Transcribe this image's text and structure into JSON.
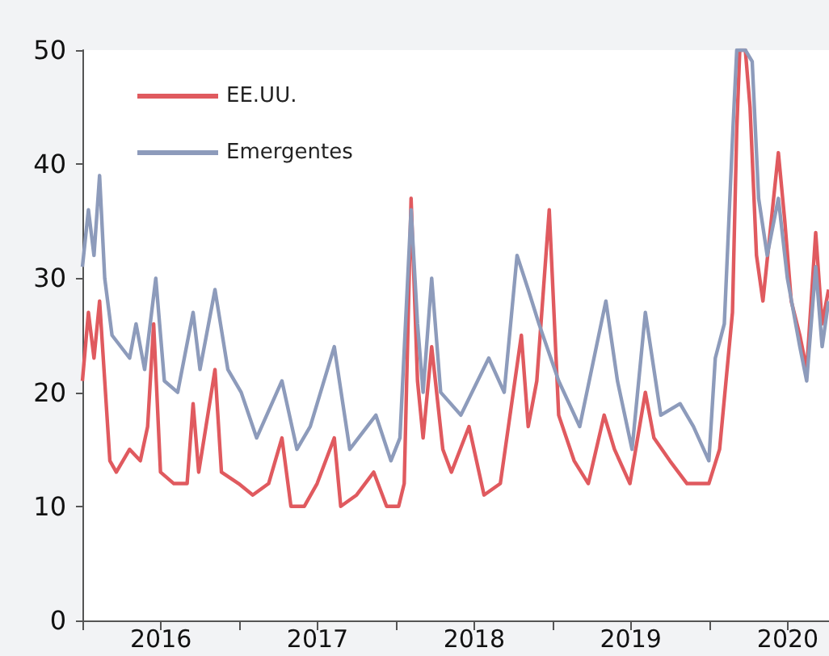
{
  "chart_data": {
    "type": "line",
    "xlim": [
      "2016-01-01",
      "2020-10-06"
    ],
    "xticks": [
      {
        "value": "2016-01-01",
        "label": null
      },
      {
        "value": "2016-07-02",
        "label": "2016"
      },
      {
        "value": "2017-01-01",
        "label": null
      },
      {
        "value": "2017-07-02",
        "label": "2017"
      },
      {
        "value": "2018-01-01",
        "label": null
      },
      {
        "value": "2018-07-02",
        "label": "2018"
      },
      {
        "value": "2019-01-01",
        "label": null
      },
      {
        "value": "2019-07-02",
        "label": "2019"
      },
      {
        "value": "2020-01-01",
        "label": null
      },
      {
        "value": "2020-07-02",
        "label": "2020"
      }
    ],
    "ylim": [
      0,
      50
    ],
    "yticks": [
      0,
      10,
      20,
      30,
      40,
      50
    ],
    "grid": false,
    "legend": "top left",
    "marker": "none",
    "line_style": "solid",
    "series": [
      {
        "name": "EE.UU.",
        "color": "#e05a5f",
        "x": [
          "2016-01-01",
          "2016-01-15",
          "2016-01-28",
          "2016-02-10",
          "2016-02-22",
          "2016-03-05",
          "2016-03-20",
          "2016-04-20",
          "2016-05-15",
          "2016-06-01",
          "2016-06-15",
          "2016-07-01",
          "2016-08-01",
          "2016-09-01",
          "2016-09-15",
          "2016-09-28",
          "2016-10-15",
          "2016-11-05",
          "2016-11-20",
          "2016-12-30",
          "2017-02-01",
          "2017-03-10",
          "2017-04-10",
          "2017-05-01",
          "2017-06-01",
          "2017-07-01",
          "2017-08-10",
          "2017-08-25",
          "2017-10-01",
          "2017-11-10",
          "2017-12-10",
          "2018-01-07",
          "2018-01-20",
          "2018-02-05",
          "2018-02-20",
          "2018-03-05",
          "2018-03-25",
          "2018-04-20",
          "2018-05-10",
          "2018-06-20",
          "2018-07-25",
          "2018-09-01",
          "2018-10-20",
          "2018-11-05",
          "2018-11-25",
          "2018-12-24",
          "2019-01-15",
          "2019-02-20",
          "2019-03-25",
          "2019-05-01",
          "2019-05-25",
          "2019-06-30",
          "2019-08-05",
          "2019-08-25",
          "2019-10-01",
          "2019-11-10",
          "2019-12-31",
          "2020-01-25",
          "2020-02-24",
          "2020-03-05",
          "2020-03-12",
          "2020-03-25",
          "2020-04-05",
          "2020-04-20",
          "2020-05-05",
          "2020-06-10",
          "2020-06-25",
          "2020-07-10",
          "2020-07-30",
          "2020-08-15",
          "2020-09-05",
          "2020-09-20",
          "2020-10-05"
        ],
        "values": [
          21,
          27,
          23,
          28,
          21,
          14,
          13,
          15,
          14,
          17,
          26,
          13,
          12,
          12,
          19,
          13,
          17,
          22,
          13,
          12,
          11,
          12,
          16,
          10,
          10,
          12,
          16,
          10,
          11,
          13,
          10,
          10,
          12,
          37,
          21,
          16,
          24,
          15,
          13,
          17,
          11,
          12,
          25,
          17,
          21,
          36,
          18,
          14,
          12,
          18,
          15,
          12,
          20,
          16,
          14,
          12,
          12,
          15,
          27,
          43,
          50,
          50,
          45,
          32,
          28,
          41,
          35,
          28,
          25,
          22,
          34,
          26,
          29
        ]
      },
      {
        "name": "Emergentes",
        "color": "#8d9bbb",
        "x": [
          "2016-01-01",
          "2016-01-15",
          "2016-01-28",
          "2016-02-10",
          "2016-02-22",
          "2016-03-10",
          "2016-04-20",
          "2016-05-05",
          "2016-05-25",
          "2016-06-20",
          "2016-07-10",
          "2016-08-10",
          "2016-09-15",
          "2016-10-01",
          "2016-11-05",
          "2016-12-05",
          "2017-01-05",
          "2017-02-10",
          "2017-04-10",
          "2017-05-15",
          "2017-06-15",
          "2017-08-10",
          "2017-09-15",
          "2017-11-15",
          "2017-12-20",
          "2018-01-10",
          "2018-02-05",
          "2018-02-20",
          "2018-03-05",
          "2018-03-25",
          "2018-04-15",
          "2018-06-01",
          "2018-08-05",
          "2018-09-10",
          "2018-10-10",
          "2018-11-05",
          "2018-11-30",
          "2019-01-15",
          "2019-03-05",
          "2019-05-05",
          "2019-06-01",
          "2019-07-05",
          "2019-08-05",
          "2019-09-10",
          "2019-10-25",
          "2019-11-25",
          "2019-12-31",
          "2020-01-15",
          "2020-02-05",
          "2020-02-25",
          "2020-03-05",
          "2020-03-25",
          "2020-04-10",
          "2020-04-25",
          "2020-05-15",
          "2020-06-10",
          "2020-07-01",
          "2020-07-30",
          "2020-08-15",
          "2020-09-05",
          "2020-09-20",
          "2020-10-05"
        ],
        "values": [
          31,
          36,
          32,
          39,
          30,
          25,
          23,
          26,
          22,
          30,
          21,
          20,
          27,
          22,
          29,
          22,
          20,
          16,
          21,
          15,
          17,
          24,
          15,
          18,
          14,
          16,
          36,
          26,
          20,
          30,
          20,
          18,
          23,
          20,
          32,
          29,
          26,
          21,
          17,
          28,
          21,
          15,
          27,
          18,
          19,
          17,
          14,
          23,
          26,
          43,
          50,
          50,
          49,
          37,
          32,
          37,
          30,
          24,
          21,
          31,
          24,
          28
        ]
      }
    ]
  }
}
